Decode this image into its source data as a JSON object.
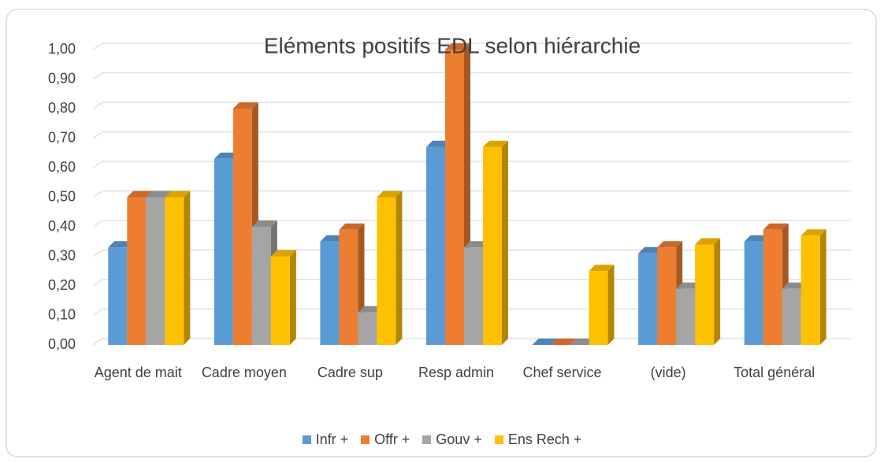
{
  "chart_data": {
    "type": "bar3d",
    "title": "Eléments positifs EDL selon hiérarchie",
    "categories": [
      "Agent de mait",
      "Cadre moyen",
      "Cadre sup",
      "Resp admin",
      "Chef service",
      "(vide)",
      "Total général"
    ],
    "series": [
      {
        "name": "Infr +",
        "color": "#5b9bd5",
        "values": [
          0.33,
          0.63,
          0.35,
          0.67,
          0,
          0.31,
          0.35
        ]
      },
      {
        "name": "Offr +",
        "color": "#ed7d31",
        "values": [
          0.5,
          0.8,
          0.39,
          1.0,
          0,
          0.33,
          0.39
        ]
      },
      {
        "name": "Gouv +",
        "color": "#a5a5a5",
        "values": [
          0.5,
          0.4,
          0.11,
          0.33,
          0,
          0.19,
          0.19
        ]
      },
      {
        "name": "Ens Rech +",
        "color": "#ffc000",
        "values": [
          0.5,
          0.3,
          0.5,
          0.67,
          0.25,
          0.34,
          0.37
        ]
      }
    ],
    "ylim": [
      0,
      1
    ],
    "yticks": [
      {
        "value": 0,
        "label": "0,00"
      },
      {
        "value": 0.1,
        "label": "0,10"
      },
      {
        "value": 0.2,
        "label": "0,20"
      },
      {
        "value": 0.3,
        "label": "0,30"
      },
      {
        "value": 0.4,
        "label": "0,40"
      },
      {
        "value": 0.5,
        "label": "0,50"
      },
      {
        "value": 0.6,
        "label": "0,60"
      },
      {
        "value": 0.7,
        "label": "0,70"
      },
      {
        "value": 0.8,
        "label": "0,80"
      },
      {
        "value": 0.9,
        "label": "0,90"
      },
      {
        "value": 1,
        "label": "1,00"
      }
    ],
    "grid": true,
    "legend": "bottom"
  }
}
